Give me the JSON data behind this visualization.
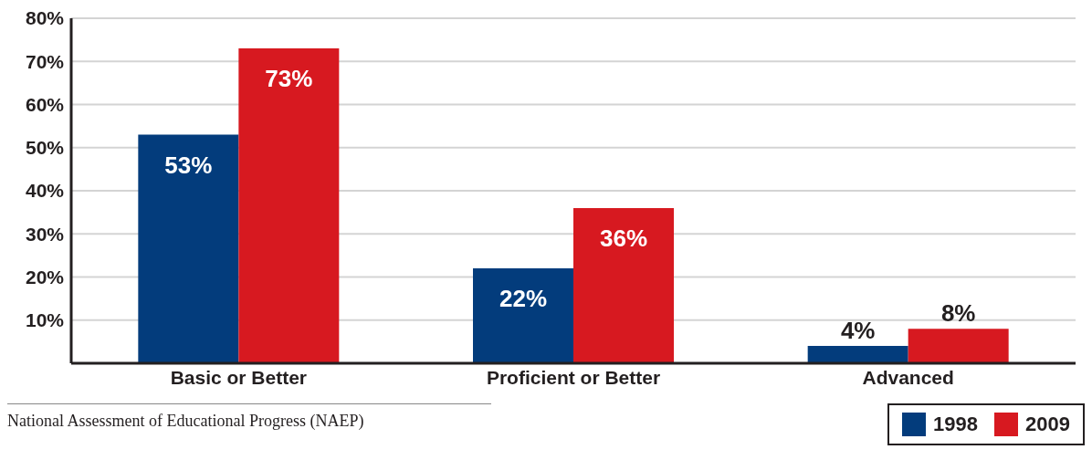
{
  "chart_data": {
    "type": "bar",
    "categories": [
      "Basic or Better",
      "Proficient or Better",
      "Advanced"
    ],
    "series": [
      {
        "name": "1998",
        "color": "#033c7c",
        "values": [
          53,
          22,
          4
        ],
        "value_labels": [
          "53%",
          "22%",
          "4%"
        ]
      },
      {
        "name": "2009",
        "color": "#d71920",
        "values": [
          73,
          36,
          8
        ],
        "value_labels": [
          "73%",
          "36%",
          "8%"
        ]
      }
    ],
    "ylim": [
      0,
      80
    ],
    "yticks": [
      {
        "value": 0,
        "label": null
      },
      {
        "value": 10,
        "label": "10%"
      },
      {
        "value": 20,
        "label": "20%"
      },
      {
        "value": 30,
        "label": "30%"
      },
      {
        "value": 40,
        "label": "40%"
      },
      {
        "value": 50,
        "label": "50%"
      },
      {
        "value": 60,
        "label": "60%"
      },
      {
        "value": 70,
        "label": "70%"
      },
      {
        "value": 80,
        "label": "80%"
      }
    ],
    "grid": "y",
    "legend": "bottom right",
    "annotations": [
      "National Assessment of Educational Progress (NAEP)"
    ]
  }
}
